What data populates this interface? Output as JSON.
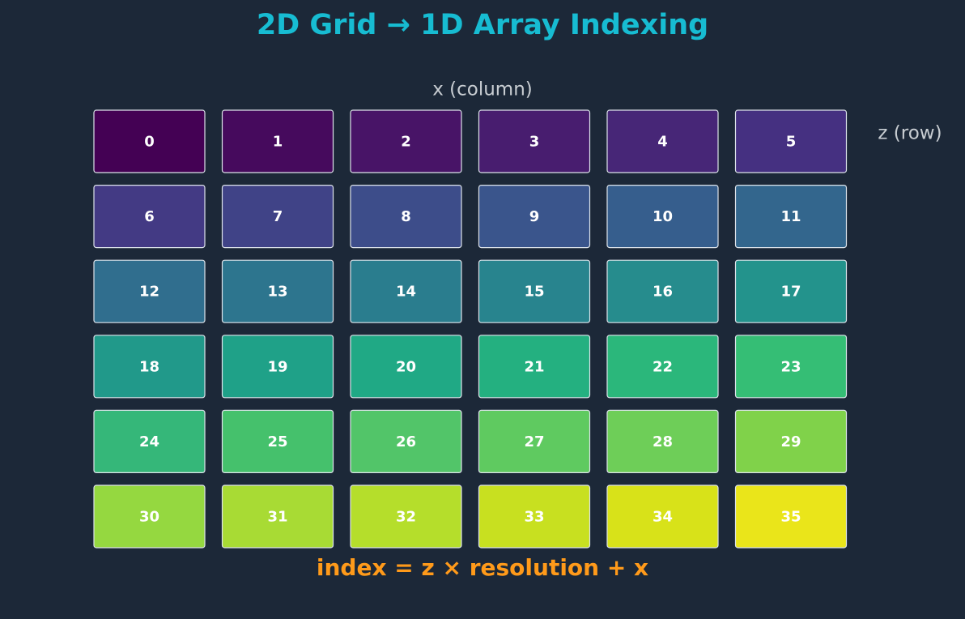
{
  "title": "2D Grid → 1D Array Indexing",
  "x_label": "x (column)",
  "z_label": "z (row)",
  "formula": "index = z × resolution + x",
  "columns": 6,
  "cells": [
    {
      "label": "0",
      "color": "#440154"
    },
    {
      "label": "1",
      "color": "#460a5d"
    },
    {
      "label": "2",
      "color": "#481467"
    },
    {
      "label": "3",
      "color": "#481d6f"
    },
    {
      "label": "4",
      "color": "#472677"
    },
    {
      "label": "5",
      "color": "#453081"
    },
    {
      "label": "6",
      "color": "#433a84"
    },
    {
      "label": "7",
      "color": "#404387"
    },
    {
      "label": "8",
      "color": "#3d4d8a"
    },
    {
      "label": "9",
      "color": "#3a558c"
    },
    {
      "label": "10",
      "color": "#365e8d"
    },
    {
      "label": "11",
      "color": "#33668d"
    },
    {
      "label": "12",
      "color": "#306e8e"
    },
    {
      "label": "13",
      "color": "#2d758e"
    },
    {
      "label": "14",
      "color": "#2a7d8e"
    },
    {
      "label": "15",
      "color": "#28848e"
    },
    {
      "label": "16",
      "color": "#268c8d"
    },
    {
      "label": "17",
      "color": "#23938c"
    },
    {
      "label": "18",
      "color": "#21998a"
    },
    {
      "label": "19",
      "color": "#1fa188"
    },
    {
      "label": "20",
      "color": "#20a985"
    },
    {
      "label": "21",
      "color": "#24b080"
    },
    {
      "label": "22",
      "color": "#2bb77b"
    },
    {
      "label": "23",
      "color": "#35be75"
    },
    {
      "label": "24",
      "color": "#35b779"
    },
    {
      "label": "25",
      "color": "#45c16c"
    },
    {
      "label": "26",
      "color": "#52c569"
    },
    {
      "label": "27",
      "color": "#5fca60"
    },
    {
      "label": "28",
      "color": "#6ece58"
    },
    {
      "label": "29",
      "color": "#80d24a"
    },
    {
      "label": "30",
      "color": "#95d840"
    },
    {
      "label": "31",
      "color": "#a8db34"
    },
    {
      "label": "32",
      "color": "#b5de2b"
    },
    {
      "label": "33",
      "color": "#c8e020"
    },
    {
      "label": "34",
      "color": "#d8e219"
    },
    {
      "label": "35",
      "color": "#eae51a"
    }
  ]
}
